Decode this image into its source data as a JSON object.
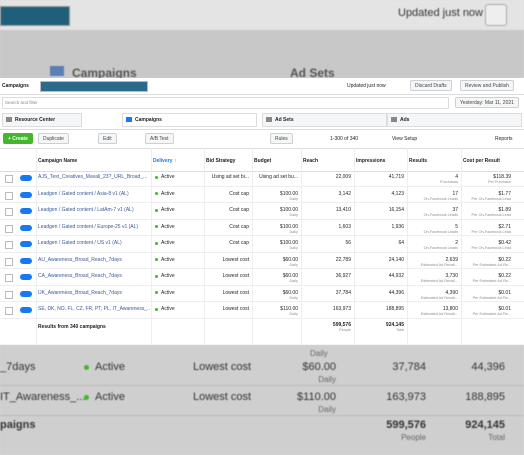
{
  "backdrop": {
    "updated": "Updated just now",
    "campaigns": "Campaigns",
    "ad_sets": "Ad Sets"
  },
  "toolbar": {
    "title": "Campaigns",
    "updated": "Updated just now",
    "discard": "Discard Drafts",
    "review": "Review and Publish"
  },
  "search": {
    "placeholder": "Search and filter",
    "date": "Yesterday: Mar 11, 2021"
  },
  "tabs": [
    "Resource Center",
    "Campaigns",
    "Ad Sets",
    "Ads"
  ],
  "actions": {
    "create": "+ Create",
    "duplicate": "Duplicate",
    "edit": "Edit",
    "ab_test": "A/B Test",
    "rules": "Rules",
    "pagination": "1-300 of 340",
    "view_setup": "View Setup",
    "reports": "Reports"
  },
  "table": {
    "columns": [
      "Campaign Name",
      "Delivery ↑",
      "Bid Strategy",
      "Budget",
      "Reach",
      "Impressions",
      "Results",
      "Cost per Result"
    ],
    "rows": [
      [
        "AJS_Test_Creatives_Mavali_23?_URL_Broad_...",
        "Active",
        "Using ad set bi...",
        "Using ad set bu...",
        null,
        "22,009",
        "41,719",
        "4",
        "Purchases",
        "$118.39",
        "Per Purchase"
      ],
      [
        "Leadgen / Gated content / Asia-8 v1 (AL)",
        "Active",
        "Cost cap",
        "$100.00",
        "Daily",
        "3,142",
        "4,123",
        "17",
        "On-Facebook Leads",
        "$1.77",
        "Per On-Facebook Lead"
      ],
      [
        "Leadgen / Gated content / LatAm-7 v1 (AL)",
        "Active",
        "Cost cap",
        "$100.00",
        "Daily",
        "13,410",
        "16,154",
        "37",
        "On-Facebook Leads",
        "$1.89",
        "Per On-Facebook Lead"
      ],
      [
        "Leadgen / Gated content / Europe-25 v1 (AL)",
        "Active",
        "Cost cap",
        "$100.00",
        "Daily",
        "1,603",
        "1,936",
        "5",
        "On-Facebook Leads",
        "$2.71",
        "Per On-Facebook Lead"
      ],
      [
        "Leadgen / Gated content / US v1 (AL)",
        "Active",
        "Cost cap",
        "$100.00",
        "Daily",
        "56",
        "64",
        "2",
        "On-Facebook Leads",
        "$0.42",
        "Per On-Facebook Lead"
      ],
      [
        "AU_Awareness_Broad_Reach_7days",
        "Active",
        "Lowest cost",
        "$60.00",
        "Daily",
        "22,789",
        "24,140",
        "2,639",
        "Estimated Ad Recall...",
        "$0.22",
        "Per Estimated Ad Re..."
      ],
      [
        "CA_Awareness_Broad_Reach_7days",
        "Active",
        "Lowest cost",
        "$60.00",
        "Daily",
        "36,927",
        "44,932",
        "3,730",
        "Estimated Ad Recall...",
        "$0.22",
        "Per Estimated Ad Re..."
      ],
      [
        "UK_Awareness_Broad_Reach_7days",
        "Active",
        "Lowest cost",
        "$60.00",
        "Daily",
        "37,784",
        "44,396",
        "4,390",
        "Estimated Ad Recall...",
        "$0.01",
        "Per Estimated Ad Re..."
      ],
      [
        "SE, DK, NO, FL, CZ, FR, PT, PL, IT_Awareness_...",
        "Active",
        "Lowest cost",
        "$110.00",
        "Daily",
        "163,973",
        "188,895",
        "13,800",
        "Estimated Ad Recall...",
        "$0.01",
        "Per Estimated Ad Re..."
      ]
    ],
    "footer": {
      "label": "Results from 340 campaigns",
      "reach": "599,576",
      "reach_sub": "People",
      "impressions": "924,145",
      "impressions_sub": "Total"
    }
  },
  "zoom": {
    "top_daily": "Daily",
    "rows": [
      [
        "_7days",
        "Active",
        "Lowest cost",
        "$60.00",
        "Daily",
        "37,784",
        "44,396"
      ],
      [
        "IT_Awareness_...",
        "Active",
        "Lowest cost",
        "$110.00",
        "Daily",
        "163,973",
        "188,895"
      ]
    ],
    "footer": {
      "label": "paigns",
      "reach": "599,576",
      "reach_sub": "People",
      "impressions": "924,145",
      "impressions_sub": "Total"
    }
  }
}
